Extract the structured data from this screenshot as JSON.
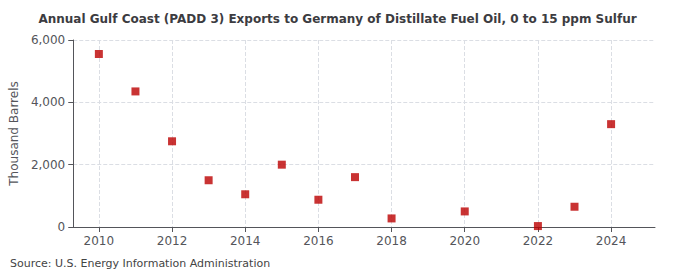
{
  "chart_data": {
    "type": "scatter",
    "title": "Annual Gulf Coast (PADD 3) Exports to Germany of Distillate Fuel Oil, 0 to 15 ppm Sulfur",
    "ylabel": "Thousand Barrels",
    "annotations": [
      "Source: U.S. Energy Information Administration"
    ],
    "x": [
      2010,
      2011,
      2012,
      2013,
      2014,
      2015,
      2016,
      2017,
      2018,
      2020,
      2022,
      2023,
      2024
    ],
    "values": [
      5550,
      4350,
      2750,
      1500,
      1050,
      2000,
      875,
      1600,
      275,
      500,
      30,
      650,
      3300
    ],
    "color": "#bb0000",
    "marker": "square",
    "xlim": [
      2009.3,
      2025.2
    ],
    "ylim": [
      0,
      6000
    ],
    "xticks": [
      2010,
      2012,
      2014,
      2016,
      2018,
      2020,
      2022,
      2024
    ],
    "yticks": [
      0,
      {
        "value": 2000,
        "label": "2,000"
      },
      {
        "value": 4000,
        "label": "4,000"
      },
      {
        "value": 6000,
        "label": "6,000"
      }
    ],
    "grid": true
  }
}
